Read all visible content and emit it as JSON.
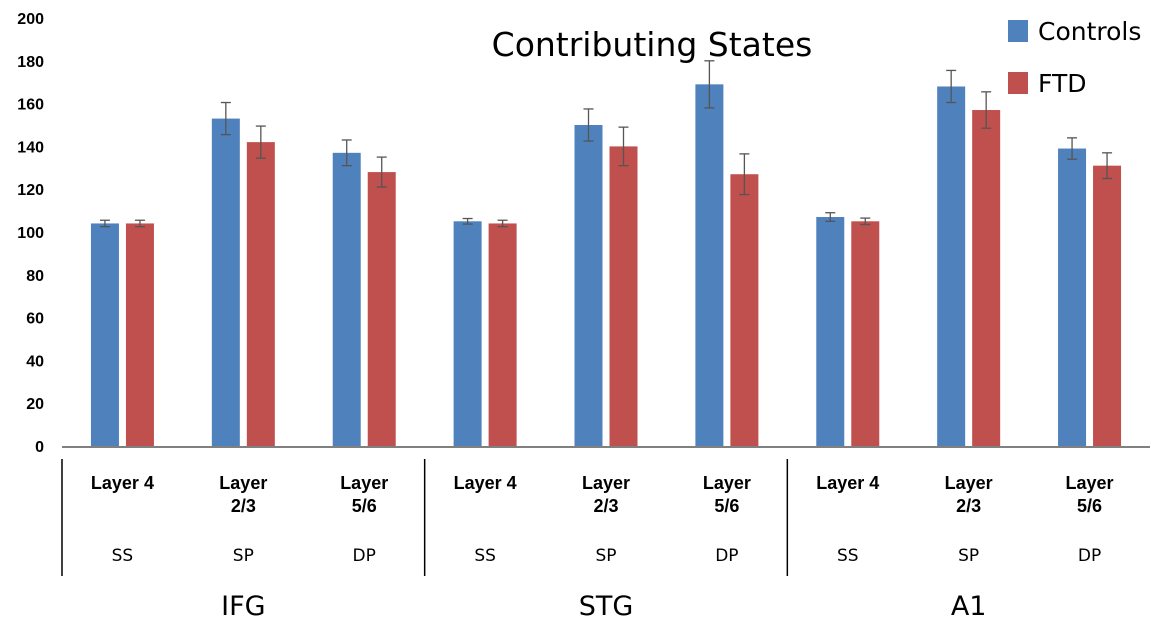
{
  "chart_data": {
    "type": "bar",
    "title": "Contributing States",
    "ylim": [
      0,
      200
    ],
    "yticks": [
      0,
      20,
      40,
      60,
      80,
      100,
      120,
      140,
      160,
      180,
      200
    ],
    "grid": false,
    "legend_position": "top-right",
    "colors": {
      "Controls": "#4f81bd",
      "FTD": "#c0504d",
      "error": "#555555",
      "axis": "#000000"
    },
    "regions": [
      {
        "name": "IFG",
        "categories": [
          {
            "layer": [
              "Layer 4"
            ],
            "cell": "SS"
          },
          {
            "layer": [
              "Layer",
              "2/3"
            ],
            "cell": "SP"
          },
          {
            "layer": [
              "Layer",
              "5/6"
            ],
            "cell": "DP"
          }
        ]
      },
      {
        "name": "STG",
        "categories": [
          {
            "layer": [
              "Layer 4"
            ],
            "cell": "SS"
          },
          {
            "layer": [
              "Layer",
              "2/3"
            ],
            "cell": "SP"
          },
          {
            "layer": [
              "Layer",
              "5/6"
            ],
            "cell": "DP"
          }
        ]
      },
      {
        "name": "A1",
        "categories": [
          {
            "layer": [
              "Layer 4"
            ],
            "cell": "SS"
          },
          {
            "layer": [
              "Layer",
              "2/3"
            ],
            "cell": "SP"
          },
          {
            "layer": [
              "Layer",
              "5/6"
            ],
            "cell": "DP"
          }
        ]
      }
    ],
    "series": [
      {
        "name": "Controls",
        "values": [
          104,
          153,
          137,
          105,
          150,
          169,
          107,
          168,
          139
        ],
        "errors": [
          1.5,
          7.5,
          6,
          1.3,
          7.5,
          11,
          2,
          7.5,
          5
        ]
      },
      {
        "name": "FTD",
        "values": [
          104,
          142,
          128,
          104,
          140,
          127,
          105,
          157,
          131
        ],
        "errors": [
          1.5,
          7.5,
          7,
          1.5,
          9,
          9.5,
          1.5,
          8.5,
          6
        ]
      }
    ]
  }
}
